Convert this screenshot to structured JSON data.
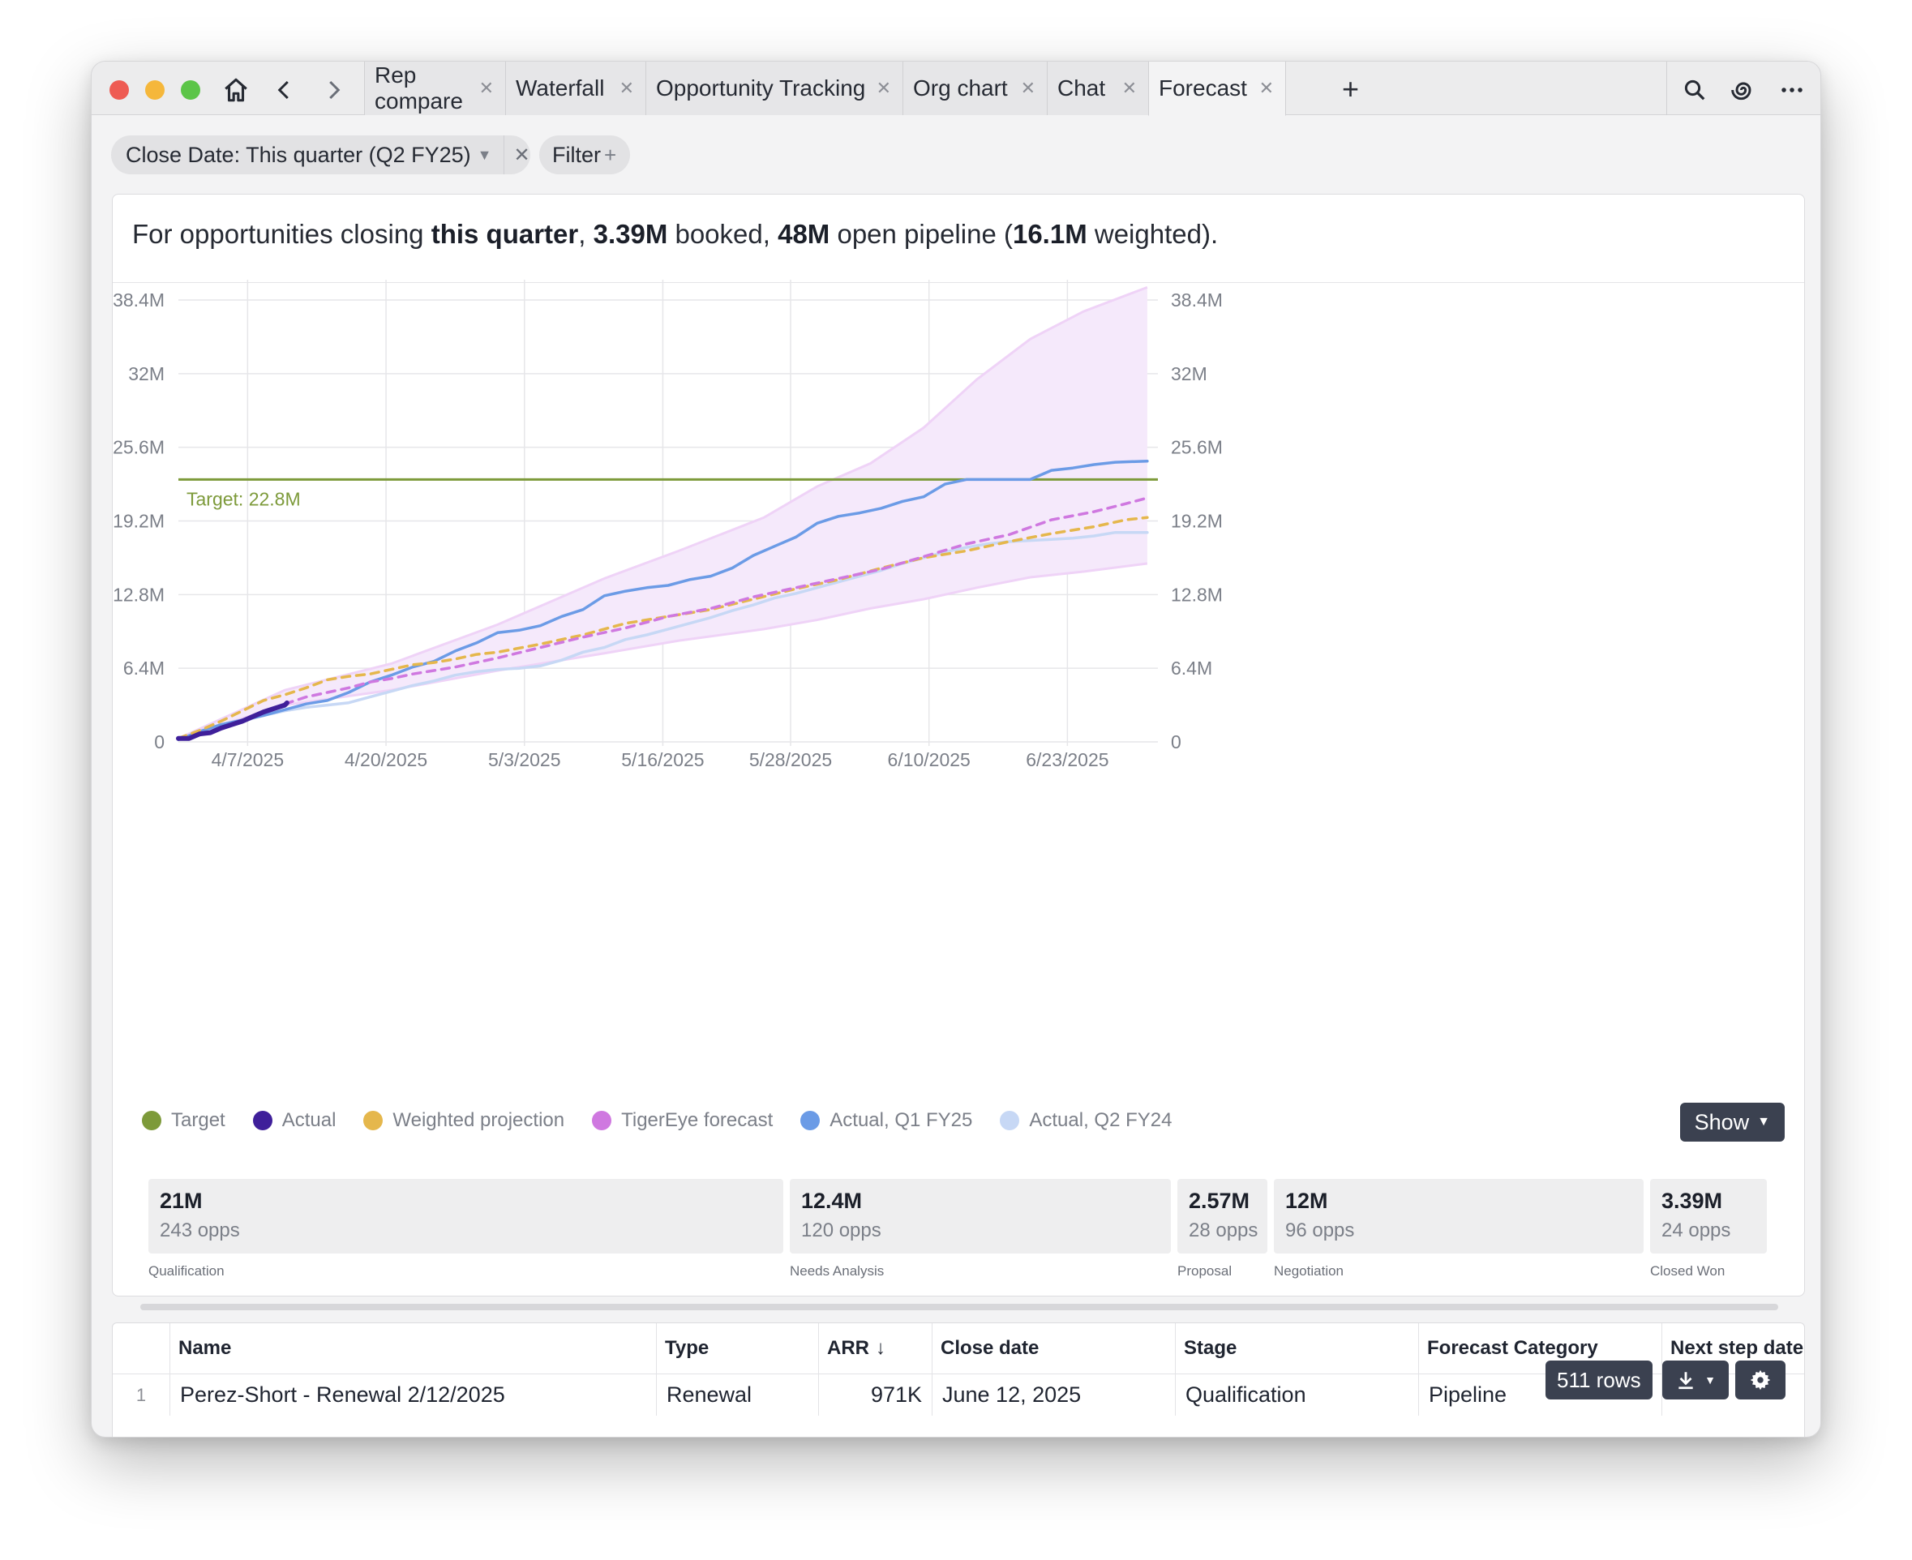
{
  "tabs": [
    {
      "label": "Rep compare"
    },
    {
      "label": "Waterfall"
    },
    {
      "label": "Opportunity Tracking"
    },
    {
      "label": "Org chart"
    },
    {
      "label": "Chat"
    },
    {
      "label": "Forecast",
      "active": true
    }
  ],
  "filters": {
    "close_date": "Close Date: This quarter (Q2 FY25)",
    "filter_label": "Filter"
  },
  "summary": {
    "prefix": "For opportunities closing ",
    "period": "this quarter",
    "sep1": ", ",
    "booked_value": "3.39M",
    "booked_text": " booked, ",
    "open_value": "48M",
    "open_text": " open pipeline (",
    "weighted_value": "16.1M",
    "weighted_text": " weighted)."
  },
  "chart_data": {
    "type": "line",
    "x_ticks": [
      "4/7/2025",
      "4/20/2025",
      "5/3/2025",
      "5/16/2025",
      "5/28/2025",
      "6/10/2025",
      "6/23/2025"
    ],
    "y_ticks": [
      "0",
      "6.4M",
      "12.8M",
      "19.2M",
      "25.6M",
      "32M",
      "38.4M"
    ],
    "ylim": [
      0,
      38.4
    ],
    "target": {
      "label": "Target: 22.8M",
      "value": 22.8
    },
    "x_range_days": [
      0,
      92
    ],
    "band": {
      "name": "TigerEye forecast range",
      "upper": [
        [
          0,
          0.3
        ],
        [
          10,
          4.5
        ],
        [
          20,
          6.8
        ],
        [
          30,
          10.2
        ],
        [
          40,
          14.2
        ],
        [
          47,
          16.6
        ],
        [
          55,
          19.5
        ],
        [
          60,
          22.2
        ],
        [
          65,
          24.2
        ],
        [
          70,
          27.3
        ],
        [
          75,
          31.5
        ],
        [
          80,
          35.0
        ],
        [
          85,
          37.4
        ],
        [
          91,
          39.5
        ]
      ],
      "lower": [
        [
          0,
          0.3
        ],
        [
          10,
          3.2
        ],
        [
          20,
          4.5
        ],
        [
          30,
          6.2
        ],
        [
          40,
          7.7
        ],
        [
          47,
          8.8
        ],
        [
          55,
          9.8
        ],
        [
          60,
          10.6
        ],
        [
          65,
          11.6
        ],
        [
          70,
          12.4
        ],
        [
          75,
          13.4
        ],
        [
          80,
          14.3
        ],
        [
          85,
          14.8
        ],
        [
          91,
          15.5
        ]
      ]
    },
    "series": [
      {
        "name": "Target",
        "color": "#7d9a3a"
      },
      {
        "name": "Actual",
        "color": "#3f1f9a",
        "values": [
          [
            0,
            0.3
          ],
          [
            1,
            0.3
          ],
          [
            2,
            0.7
          ],
          [
            3,
            0.8
          ],
          [
            4,
            1.2
          ],
          [
            5,
            1.5
          ],
          [
            6,
            1.8
          ],
          [
            7,
            2.2
          ],
          [
            8,
            2.6
          ],
          [
            9,
            2.9
          ],
          [
            10,
            3.2
          ],
          [
            10.2,
            3.39
          ]
        ]
      },
      {
        "name": "Weighted projection",
        "color": "#e5b74c",
        "values": [
          [
            0,
            0.3
          ],
          [
            2,
            1.0
          ],
          [
            4,
            1.8
          ],
          [
            6,
            2.7
          ],
          [
            8,
            3.6
          ],
          [
            10,
            4.1
          ],
          [
            12,
            4.7
          ],
          [
            14,
            5.4
          ],
          [
            16,
            5.7
          ],
          [
            18,
            5.9
          ],
          [
            20,
            6.3
          ],
          [
            22,
            6.7
          ],
          [
            24,
            6.9
          ],
          [
            26,
            7.2
          ],
          [
            28,
            7.6
          ],
          [
            30,
            7.8
          ],
          [
            34,
            8.5
          ],
          [
            38,
            9.3
          ],
          [
            42,
            10.3
          ],
          [
            46,
            10.9
          ],
          [
            50,
            11.5
          ],
          [
            54,
            12.4
          ],
          [
            58,
            13.3
          ],
          [
            62,
            14.1
          ],
          [
            66,
            15.1
          ],
          [
            70,
            16.0
          ],
          [
            74,
            16.6
          ],
          [
            78,
            17.4
          ],
          [
            82,
            18.1
          ],
          [
            86,
            18.7
          ],
          [
            89,
            19.3
          ],
          [
            91,
            19.5
          ]
        ]
      },
      {
        "name": "TigerEye forecast",
        "color": "#cf78e0",
        "values": [
          [
            10,
            3.3
          ],
          [
            12,
            3.9
          ],
          [
            14,
            4.3
          ],
          [
            16,
            4.7
          ],
          [
            18,
            5.2
          ],
          [
            20,
            5.5
          ],
          [
            22,
            5.9
          ],
          [
            24,
            6.2
          ],
          [
            26,
            6.5
          ],
          [
            28,
            6.9
          ],
          [
            30,
            7.3
          ],
          [
            34,
            8.2
          ],
          [
            38,
            9.1
          ],
          [
            42,
            9.9
          ],
          [
            46,
            10.9
          ],
          [
            50,
            11.6
          ],
          [
            54,
            12.6
          ],
          [
            58,
            13.4
          ],
          [
            62,
            14.2
          ],
          [
            66,
            15.0
          ],
          [
            70,
            16.1
          ],
          [
            74,
            17.2
          ],
          [
            78,
            18.0
          ],
          [
            82,
            19.3
          ],
          [
            86,
            20.0
          ],
          [
            89,
            20.7
          ],
          [
            91,
            21.2
          ]
        ]
      },
      {
        "name": "Actual, Q1 FY25",
        "color": "#6b9be6",
        "values": [
          [
            0,
            0.2
          ],
          [
            2,
            0.9
          ],
          [
            4,
            1.5
          ],
          [
            6,
            1.9
          ],
          [
            8,
            2.3
          ],
          [
            10,
            2.8
          ],
          [
            12,
            3.3
          ],
          [
            14,
            3.6
          ],
          [
            16,
            4.3
          ],
          [
            18,
            5.2
          ],
          [
            20,
            5.8
          ],
          [
            22,
            6.5
          ],
          [
            24,
            7.0
          ],
          [
            26,
            7.9
          ],
          [
            28,
            8.6
          ],
          [
            30,
            9.5
          ],
          [
            32,
            9.7
          ],
          [
            34,
            10.1
          ],
          [
            36,
            10.9
          ],
          [
            38,
            11.5
          ],
          [
            40,
            12.7
          ],
          [
            42,
            13.1
          ],
          [
            44,
            13.4
          ],
          [
            46,
            13.6
          ],
          [
            48,
            14.1
          ],
          [
            50,
            14.4
          ],
          [
            52,
            15.1
          ],
          [
            54,
            16.2
          ],
          [
            56,
            17.0
          ],
          [
            58,
            17.8
          ],
          [
            60,
            19.0
          ],
          [
            62,
            19.6
          ],
          [
            64,
            19.9
          ],
          [
            66,
            20.3
          ],
          [
            68,
            20.9
          ],
          [
            70,
            21.3
          ],
          [
            72,
            22.4
          ],
          [
            74,
            22.8
          ],
          [
            76,
            22.8
          ],
          [
            78,
            22.8
          ],
          [
            80,
            22.8
          ],
          [
            82,
            23.6
          ],
          [
            84,
            23.8
          ],
          [
            86,
            24.1
          ],
          [
            88,
            24.3
          ],
          [
            91,
            24.4
          ]
        ]
      },
      {
        "name": "Actual, Q2 FY24",
        "color": "#c7d8f5",
        "values": [
          [
            0,
            0.2
          ],
          [
            2,
            0.7
          ],
          [
            4,
            1.2
          ],
          [
            6,
            1.8
          ],
          [
            8,
            2.3
          ],
          [
            10,
            2.7
          ],
          [
            12,
            3.0
          ],
          [
            14,
            3.2
          ],
          [
            16,
            3.4
          ],
          [
            18,
            3.9
          ],
          [
            20,
            4.4
          ],
          [
            22,
            4.9
          ],
          [
            24,
            5.3
          ],
          [
            26,
            5.8
          ],
          [
            28,
            6.1
          ],
          [
            30,
            6.3
          ],
          [
            32,
            6.4
          ],
          [
            34,
            6.6
          ],
          [
            36,
            7.1
          ],
          [
            38,
            7.8
          ],
          [
            40,
            8.2
          ],
          [
            42,
            8.9
          ],
          [
            44,
            9.3
          ],
          [
            46,
            9.8
          ],
          [
            48,
            10.3
          ],
          [
            50,
            10.8
          ],
          [
            52,
            11.4
          ],
          [
            54,
            11.9
          ],
          [
            56,
            12.5
          ],
          [
            58,
            12.9
          ],
          [
            60,
            13.4
          ],
          [
            62,
            13.9
          ],
          [
            64,
            14.4
          ],
          [
            66,
            14.9
          ],
          [
            68,
            15.5
          ],
          [
            70,
            16.0
          ],
          [
            72,
            16.5
          ],
          [
            74,
            16.9
          ],
          [
            76,
            17.2
          ],
          [
            78,
            17.4
          ],
          [
            80,
            17.5
          ],
          [
            82,
            17.6
          ],
          [
            84,
            17.7
          ],
          [
            86,
            17.9
          ],
          [
            88,
            18.2
          ],
          [
            91,
            18.2
          ]
        ]
      }
    ]
  },
  "legend": [
    {
      "label": "Target",
      "color": "#7d9a3a"
    },
    {
      "label": "Actual",
      "color": "#3f1f9a"
    },
    {
      "label": "Weighted projection",
      "color": "#e5b74c"
    },
    {
      "label": "TigerEye forecast",
      "color": "#cf78e0"
    },
    {
      "label": "Actual, Q1 FY25",
      "color": "#6b9be6"
    },
    {
      "label": "Actual, Q2 FY24",
      "color": "#c7d8f5"
    }
  ],
  "show_button": "Show",
  "stages": [
    {
      "amount": "21M",
      "opps": "243 opps",
      "label": "Qualification"
    },
    {
      "amount": "12.4M",
      "opps": "120 opps",
      "label": "Needs Analysis"
    },
    {
      "amount": "2.57M",
      "opps": "28 opps",
      "label": "Proposal"
    },
    {
      "amount": "12M",
      "opps": "96 opps",
      "label": "Negotiation"
    },
    {
      "amount": "3.39M",
      "opps": "24 opps",
      "label": "Closed Won"
    }
  ],
  "table": {
    "columns": [
      "Name",
      "Type",
      "ARR",
      "Close date",
      "Stage",
      "Forecast Category",
      "Next step date"
    ],
    "sort_indicator": "↓",
    "rows": [
      {
        "num": "1",
        "name": "Perez-Short - Renewal 2/12/2025",
        "type": "Renewal",
        "arr": "971K",
        "close_date": "June 12, 2025",
        "stage": "Qualification",
        "forecast_category": "Pipeline"
      }
    ],
    "row_count": "511 rows"
  }
}
